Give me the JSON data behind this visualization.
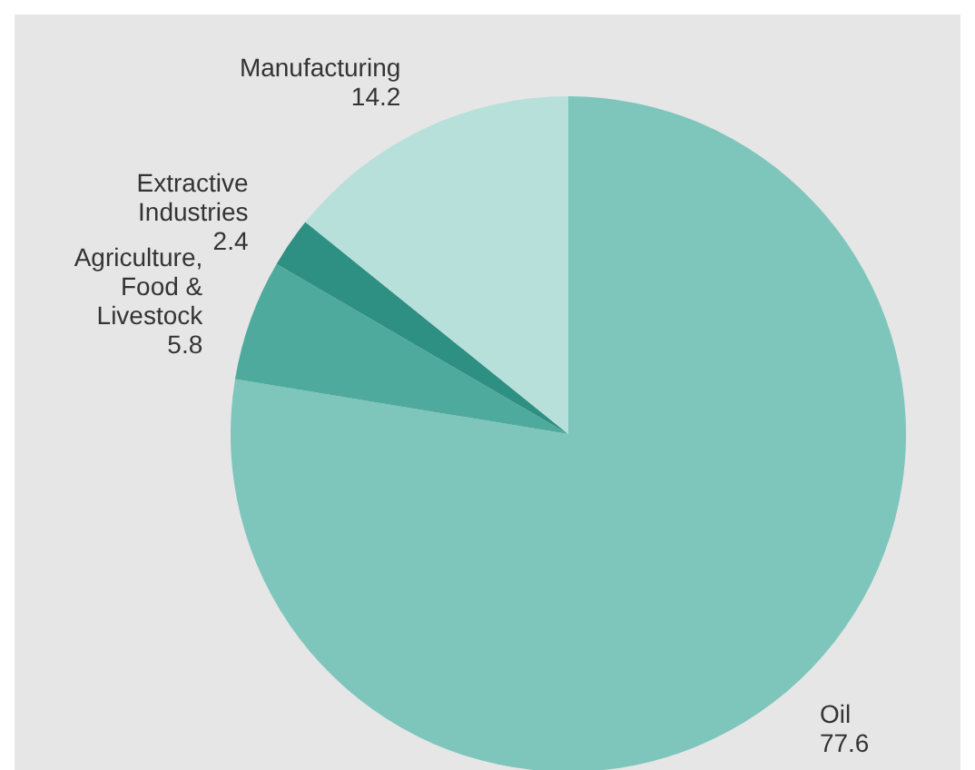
{
  "chart_data": {
    "type": "pie",
    "categories": [
      "Oil",
      "Agriculture, Food & Livestock",
      "Extractive Industries",
      "Manufacturing"
    ],
    "values": [
      77.6,
      5.8,
      2.4,
      14.2
    ],
    "colors": [
      "#7ec6bc",
      "#4faa9e",
      "#2e9082",
      "#b8e0da"
    ],
    "data_labels": true
  }
}
